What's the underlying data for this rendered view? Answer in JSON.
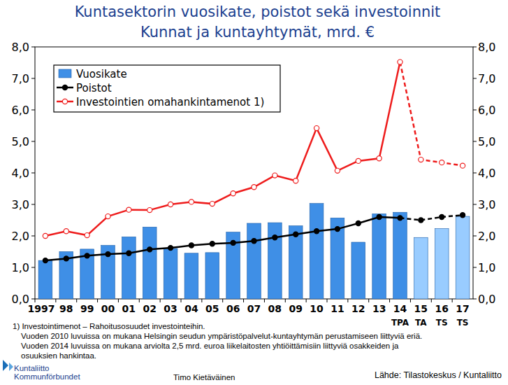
{
  "chart_data": {
    "type": "bar",
    "title": "Kuntasektorin vuosikate, poistot sekä investoinnit",
    "subtitle": "Kunnat ja kuntayhtymät, mrd. €",
    "categories": [
      "1997",
      "98",
      "99",
      "00",
      "01",
      "02",
      "03",
      "04",
      "05",
      "06",
      "07",
      "08",
      "09",
      "10",
      "11",
      "12",
      "13",
      "14",
      "15",
      "16",
      "17"
    ],
    "category_sublabels": [
      null,
      null,
      null,
      null,
      null,
      null,
      null,
      null,
      null,
      null,
      null,
      null,
      null,
      null,
      null,
      null,
      null,
      "TPA",
      "TA",
      "TS",
      "TS"
    ],
    "forecast_from": "14",
    "series": [
      {
        "name": "Vuosikate",
        "type": "bar",
        "colors": [
          "#3f8fe6",
          "#3f8fe6",
          "#3f8fe6",
          "#3f8fe6",
          "#3f8fe6",
          "#3f8fe6",
          "#3f8fe6",
          "#3f8fe6",
          "#3f8fe6",
          "#3f8fe6",
          "#3f8fe6",
          "#3f8fe6",
          "#3f8fe6",
          "#3f8fe6",
          "#3f8fe6",
          "#3f8fe6",
          "#3f8fe6",
          "#3f8fe6",
          "#99ccff",
          "#99ccff",
          "#99ccff"
        ],
        "values": [
          1.22,
          1.5,
          1.58,
          1.7,
          1.97,
          2.28,
          1.6,
          1.45,
          1.47,
          2.12,
          2.4,
          2.42,
          2.32,
          3.03,
          2.57,
          1.8,
          2.7,
          2.75,
          1.95,
          2.23,
          2.62
        ]
      },
      {
        "name": "Poistot",
        "type": "line",
        "color": "#000000",
        "marker": "filled-circle",
        "line_style": "solid",
        "values": [
          1.22,
          1.28,
          1.37,
          1.42,
          1.45,
          1.57,
          1.62,
          1.7,
          1.75,
          1.78,
          1.84,
          1.95,
          2.05,
          2.15,
          2.22,
          2.4,
          2.6,
          2.57,
          2.5,
          2.6,
          2.66
        ]
      },
      {
        "name": "Investointien omahankintamenot  1)",
        "type": "line",
        "color": "#ee1c1c",
        "marker": "open-circle",
        "line_style": "solid",
        "values": [
          2.0,
          2.15,
          2.02,
          2.62,
          2.83,
          2.82,
          3.0,
          3.08,
          3.02,
          3.35,
          3.55,
          3.92,
          3.75,
          5.42,
          4.07,
          4.38,
          4.46,
          7.52,
          4.42,
          4.33,
          4.23
        ]
      }
    ],
    "ylim": [
      0,
      8
    ],
    "yticks": [
      {
        "value": 0,
        "label": "0,0"
      },
      {
        "value": 1,
        "label": "1,0"
      },
      {
        "value": 2,
        "label": "2,0"
      },
      {
        "value": 3,
        "label": "3,0"
      },
      {
        "value": 4,
        "label": "4,0"
      },
      {
        "value": 5,
        "label": "5,0"
      },
      {
        "value": 6,
        "label": "6,0"
      },
      {
        "value": 7,
        "label": "7,0"
      },
      {
        "value": 8,
        "label": "8,0"
      }
    ],
    "y2lim": [
      0,
      8
    ],
    "y2ticks": [
      {
        "value": 0,
        "label": "0,0"
      },
      {
        "value": 1,
        "label": "1,0"
      },
      {
        "value": 2,
        "label": "2,0"
      },
      {
        "value": 3,
        "label": "3,0"
      },
      {
        "value": 4,
        "label": "4,0"
      },
      {
        "value": 5,
        "label": "5,0"
      },
      {
        "value": 6,
        "label": "6,0"
      },
      {
        "value": 7,
        "label": "7,0"
      },
      {
        "value": 8,
        "label": "8,0"
      }
    ],
    "grid": false,
    "legend": "top-left",
    "notes": [
      "1) Investointimenot – Rahoitusosuudet investointeihin.",
      "Vuoden 2010 luvuissa on mukana Helsingin seudun ympäristöpalvelut-kuntayhtymän perustamiseen liittyviä eriä.",
      "Vuoden 2014 luvuissa on mukana arviolta 2,5 mrd. euroa liikelaitosten yhtiöittämisiin liittyviä osakkeiden ja",
      "osuuksien hankintaa."
    ],
    "logo": [
      "Kuntaliitto",
      "Kommunförbundet"
    ],
    "author": "Timo Kietäväinen",
    "source": "Lähde: Tilastokeskus / Kuntaliitto"
  }
}
